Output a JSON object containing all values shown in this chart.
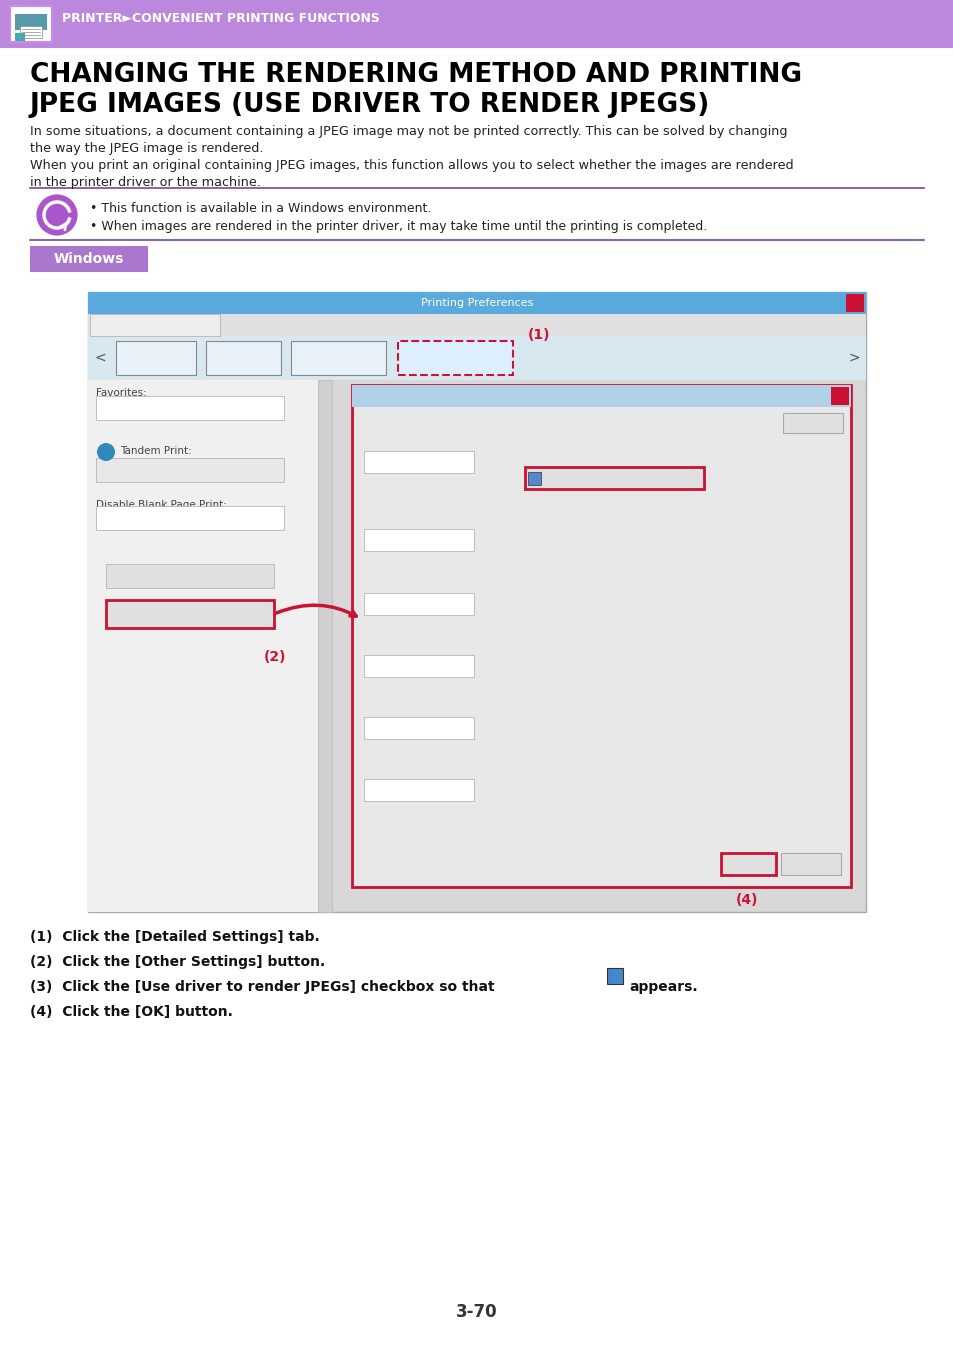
{
  "page_bg": "#ffffff",
  "header_bg": "#bb88dd",
  "header_text": "PRINTER►CONVENIENT PRINTING FUNCTIONS",
  "header_text_color": "#ffffff",
  "title_line1": "CHANGING THE RENDERING METHOD AND PRINTING",
  "title_line2": "JPEG IMAGES (USE DRIVER TO RENDER JPEGS)",
  "title_color": "#000000",
  "body_text1": "In some situations, a document containing a JPEG image may not be printed correctly. This can be solved by changing",
  "body_text2": "the way the JPEG image is rendered.",
  "body_text3": "When you print an original containing JPEG images, this function allows you to select whether the images are rendered",
  "body_text4": "in the printer driver or the machine.",
  "note_bullet1": "• This function is available in a Windows environment.",
  "note_bullet2": "• When images are rendered in the printer driver, it may take time until the printing is completed.",
  "windows_label": "Windows",
  "windows_label_bg": "#aa77cc",
  "windows_label_text_color": "#ffffff",
  "step1": "(1)  Click the [Detailed Settings] tab.",
  "step2": "(2)  Click the [Other Settings] button.",
  "step3": "(3)  Click the [Use driver to render JPEGs] checkbox so that",
  "step3b": "appears.",
  "step4": "(4)  Click the [OK] button.",
  "page_number": "3-70",
  "divider_color": "#7744aa",
  "note_icon_bg": "#aa55cc",
  "note_icon_inner": "#ffffff",
  "red_border": "#cc1133",
  "screenshot_border": "#888888",
  "titlebar_blue": "#5baade",
  "dialog_bg": "#e8e8e8",
  "dialog_titlebar": "#b0d0e8",
  "tab_bg": "#d8e8f0",
  "left_panel_bg": "#f0f0f0",
  "dropdown_bg": "#ffffff",
  "btn_bg": "#e0e0e0"
}
